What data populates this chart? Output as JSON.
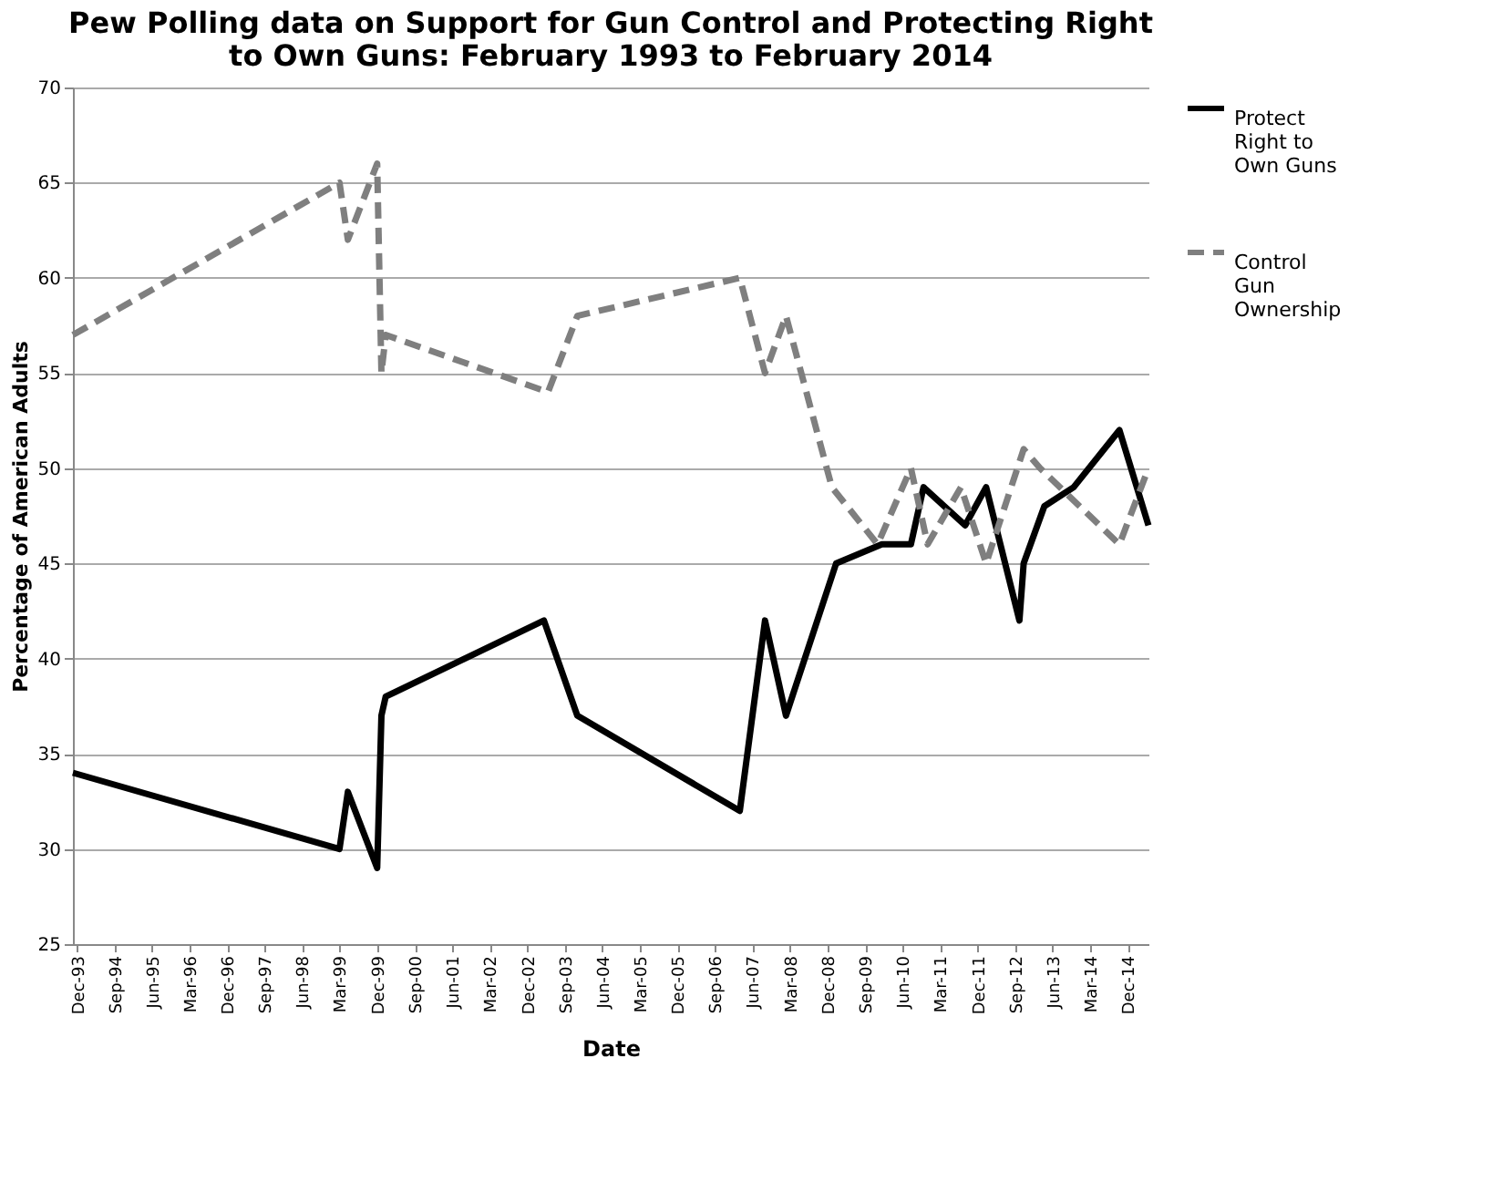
{
  "chart_data": {
    "type": "line",
    "title": [
      "Pew Polling data on Support for Gun Control and Protecting Right",
      "to Own Guns: February 1993 to February 2014"
    ],
    "xlabel": "Date",
    "ylabel": "Percentage of American Adults",
    "series": [
      {
        "name": "Protect Right to Own Guns",
        "color": "#000000",
        "line_style": "solid",
        "x": [
          "1993-11",
          "1999-03",
          "1999-05",
          "1999-12",
          "2000-01",
          "2000-02",
          "2003-04",
          "2003-12",
          "2007-03",
          "2007-09",
          "2008-02",
          "2009-02",
          "2010-01",
          "2010-08",
          "2010-11",
          "2011-09",
          "2012-02",
          "2012-10",
          "2012-11",
          "2013-04",
          "2013-11",
          "2014-10",
          "2015-05"
        ],
        "values": [
          34,
          30,
          33,
          29,
          37,
          38,
          42,
          37,
          32,
          42,
          37,
          45,
          46,
          46,
          49,
          47,
          49,
          42,
          45,
          48,
          49,
          52,
          47
        ]
      },
      {
        "name": "Control Gun Ownership",
        "color": "#7f7f7f",
        "line_style": "dashed",
        "x": [
          "1993-11",
          "1999-03",
          "1999-05",
          "1999-12",
          "2000-01",
          "2000-02",
          "2003-05",
          "2003-12",
          "2007-03",
          "2007-09",
          "2008-02",
          "2009-01",
          "2009-12",
          "2010-08",
          "2010-12",
          "2011-08",
          "2012-02",
          "2012-11",
          "2013-03",
          "2014-10",
          "2015-05"
        ],
        "values": [
          57,
          65,
          62,
          66,
          55,
          57,
          54,
          58,
          60,
          55,
          58,
          49,
          46,
          50,
          46,
          49,
          45,
          51,
          50,
          46,
          50
        ]
      }
    ],
    "xlim": [
      "1993-11",
      "2015-05"
    ],
    "xticks": [
      {
        "value": "1993-12",
        "label": "Dec-93"
      },
      {
        "value": "1994-09",
        "label": "Sep-94"
      },
      {
        "value": "1995-06",
        "label": "Jun-95"
      },
      {
        "value": "1996-03",
        "label": "Mar-96"
      },
      {
        "value": "1996-12",
        "label": "Dec-96"
      },
      {
        "value": "1997-09",
        "label": "Sep-97"
      },
      {
        "value": "1998-06",
        "label": "Jun-98"
      },
      {
        "value": "1999-03",
        "label": "Mar-99"
      },
      {
        "value": "1999-12",
        "label": "Dec-99"
      },
      {
        "value": "2000-09",
        "label": "Sep-00"
      },
      {
        "value": "2001-06",
        "label": "Jun-01"
      },
      {
        "value": "2002-03",
        "label": "Mar-02"
      },
      {
        "value": "2002-12",
        "label": "Dec-02"
      },
      {
        "value": "2003-09",
        "label": "Sep-03"
      },
      {
        "value": "2004-06",
        "label": "Jun-04"
      },
      {
        "value": "2005-03",
        "label": "Mar-05"
      },
      {
        "value": "2005-12",
        "label": "Dec-05"
      },
      {
        "value": "2006-09",
        "label": "Sep-06"
      },
      {
        "value": "2007-06",
        "label": "Jun-07"
      },
      {
        "value": "2008-03",
        "label": "Mar-08"
      },
      {
        "value": "2008-12",
        "label": "Dec-08"
      },
      {
        "value": "2009-09",
        "label": "Sep-09"
      },
      {
        "value": "2010-06",
        "label": "Jun-10"
      },
      {
        "value": "2011-03",
        "label": "Mar-11"
      },
      {
        "value": "2011-12",
        "label": "Dec-11"
      },
      {
        "value": "2012-09",
        "label": "Sep-12"
      },
      {
        "value": "2013-06",
        "label": "Jun-13"
      },
      {
        "value": "2014-03",
        "label": "Mar-14"
      },
      {
        "value": "2014-12",
        "label": "Dec-14"
      }
    ],
    "ylim": [
      25,
      70
    ],
    "yticks": [
      25,
      30,
      35,
      40,
      45,
      50,
      55,
      60,
      65,
      70
    ],
    "grid": "y",
    "legend": "right"
  }
}
